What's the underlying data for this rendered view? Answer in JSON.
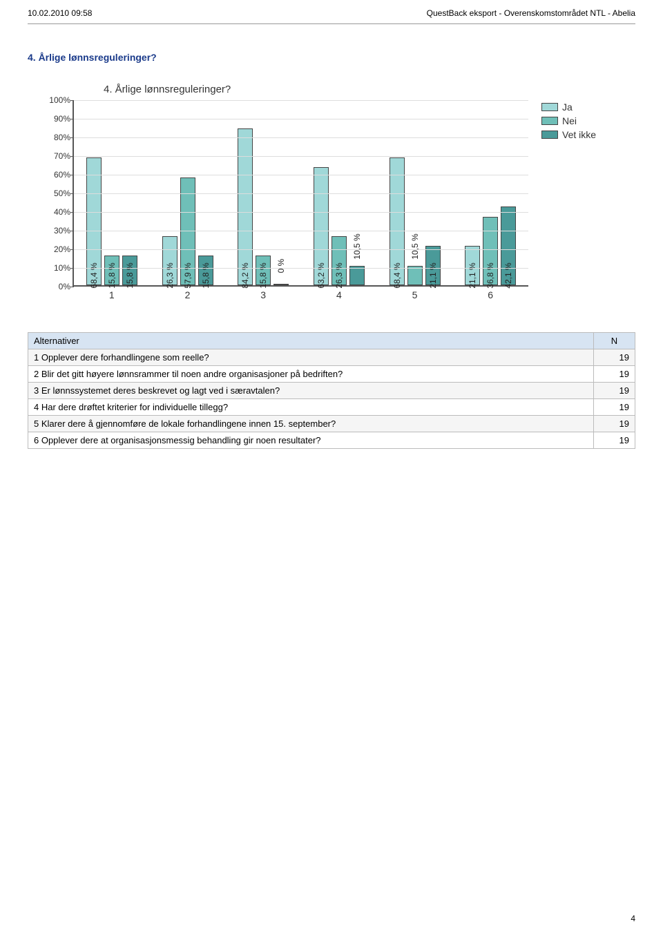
{
  "header": {
    "left": "10.02.2010 09:58",
    "right": "QuestBack eksport - Overenskomstområdet NTL - Abelia"
  },
  "section_title": "4. Årlige lønnsreguleringer?",
  "chart": {
    "title": "4. Årlige lønnsreguleringer?",
    "type": "bar",
    "ylim": [
      0,
      100
    ],
    "ytick_step": 10,
    "ytick_suffix": "%",
    "grid_color": "#dddddd",
    "axis_color": "#555555",
    "categories": [
      "1",
      "2",
      "3",
      "4",
      "5",
      "6"
    ],
    "series": [
      {
        "name": "Ja",
        "color": "#a0d8d8"
      },
      {
        "name": "Nei",
        "color": "#6fbfb8"
      },
      {
        "name": "Vet ikke",
        "color": "#4a9a99"
      }
    ],
    "groups": [
      {
        "label": "1",
        "values": [
          68.4,
          15.8,
          15.8
        ]
      },
      {
        "label": "2",
        "values": [
          26.3,
          57.9,
          15.8
        ]
      },
      {
        "label": "3",
        "values": [
          84.2,
          15.8,
          0.0
        ]
      },
      {
        "label": "4",
        "values": [
          63.2,
          26.3,
          10.5
        ]
      },
      {
        "label": "5",
        "values": [
          68.4,
          10.5,
          21.1
        ]
      },
      {
        "label": "6",
        "values": [
          21.1,
          36.8,
          42.1
        ]
      }
    ],
    "label_fontsize": 12
  },
  "legend": {
    "items": [
      "Ja",
      "Nei",
      "Vet ikke"
    ]
  },
  "table": {
    "columns": [
      "Alternativer",
      "N"
    ],
    "rows": [
      {
        "q": "1 Opplever dere forhandlingene som reelle?",
        "n": "19"
      },
      {
        "q": "2 Blir det gitt høyere lønnsrammer til noen andre organisasjoner på bedriften?",
        "n": "19"
      },
      {
        "q": "3 Er lønnssystemet deres beskrevet og lagt ved i særavtalen?",
        "n": "19"
      },
      {
        "q": "4 Har dere drøftet kriterier for individuelle tillegg?",
        "n": "19"
      },
      {
        "q": "5 Klarer dere å gjennomføre de lokale forhandlingene innen 15. september?",
        "n": "19"
      },
      {
        "q": "6 Opplever dere at organisasjonsmessig behandling gir noen resultater?",
        "n": "19"
      }
    ]
  },
  "page_number": "4"
}
